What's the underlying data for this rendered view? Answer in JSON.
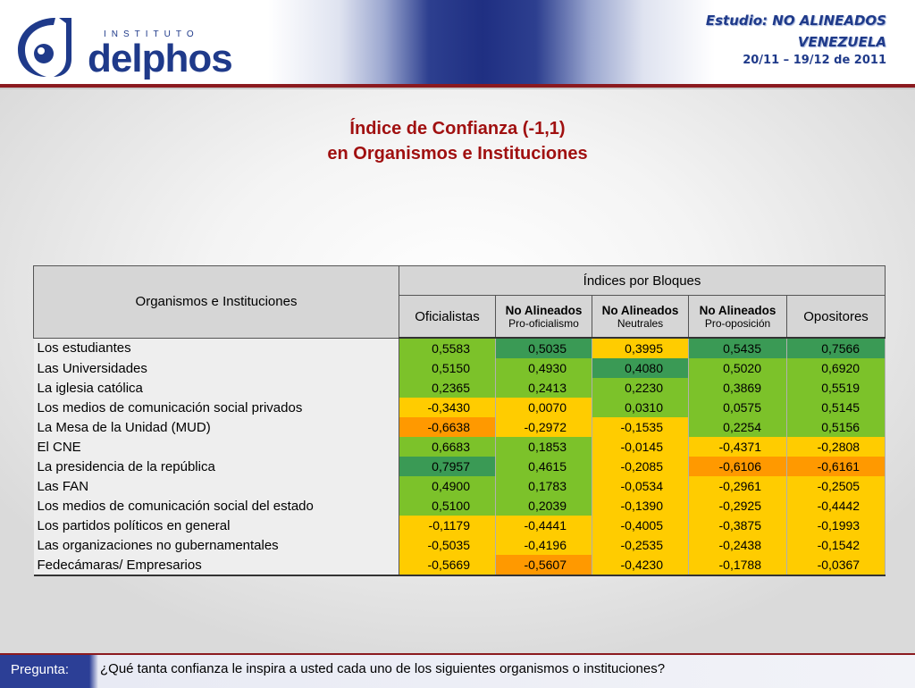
{
  "header": {
    "logo_institute": "INSTITUTO",
    "logo_word": "delphos",
    "study_label": "Estudio:",
    "study_name": "NO ALINEADOS",
    "country": "VENEZUELA",
    "date_range": "20/11 – 19/12 de 2011"
  },
  "title": {
    "line1": "Índice de Confianza (-1,1)",
    "line2": "en Organismos e Instituciones"
  },
  "table": {
    "org_header": "Organismos e Instituciones",
    "group_header": "Índices por Bloques",
    "columns": [
      {
        "bold": "",
        "sub": "",
        "plain": "Oficialistas"
      },
      {
        "bold": "No Alineados",
        "sub": "Pro-oficialismo",
        "plain": ""
      },
      {
        "bold": "No Alineados",
        "sub": "Neutrales",
        "plain": ""
      },
      {
        "bold": "No Alineados",
        "sub": "Pro-oposición",
        "plain": ""
      },
      {
        "bold": "",
        "sub": "",
        "plain": "Opositores"
      }
    ],
    "colors": {
      "dark_green": "#3a9a55",
      "light_green": "#7cc22a",
      "yellow": "#ffcc00",
      "orange": "#ff9900"
    },
    "rows": [
      {
        "name": "Los estudiantes",
        "values": [
          "0,5583",
          "0,5035",
          "0,3995",
          "0,5435",
          "0,7566"
        ],
        "tones": [
          "lg",
          "dg",
          "y",
          "dg",
          "dg"
        ]
      },
      {
        "name": "Las Universidades",
        "values": [
          "0,5150",
          "0,4930",
          "0,4080",
          "0,5020",
          "0,6920"
        ],
        "tones": [
          "lg",
          "lg",
          "dg",
          "lg",
          "lg"
        ]
      },
      {
        "name": "La iglesia católica",
        "values": [
          "0,2365",
          "0,2413",
          "0,2230",
          "0,3869",
          "0,5519"
        ],
        "tones": [
          "lg",
          "lg",
          "lg",
          "lg",
          "lg"
        ]
      },
      {
        "name": "Los medios de comunicación social privados",
        "values": [
          "-0,3430",
          "0,0070",
          "0,0310",
          "0,0575",
          "0,5145"
        ],
        "tones": [
          "y",
          "y",
          "lg",
          "lg",
          "lg"
        ]
      },
      {
        "name": "La Mesa de la Unidad (MUD)",
        "values": [
          "-0,6638",
          "-0,2972",
          "-0,1535",
          "0,2254",
          "0,5156"
        ],
        "tones": [
          "o",
          "y",
          "y",
          "lg",
          "lg"
        ]
      },
      {
        "name": "El CNE",
        "values": [
          "0,6683",
          "0,1853",
          "-0,0145",
          "-0,4371",
          "-0,2808"
        ],
        "tones": [
          "lg",
          "lg",
          "y",
          "y",
          "y"
        ]
      },
      {
        "name": "La presidencia de la república",
        "values": [
          "0,7957",
          "0,4615",
          "-0,2085",
          "-0,6106",
          "-0,6161"
        ],
        "tones": [
          "dg",
          "lg",
          "y",
          "o",
          "o"
        ]
      },
      {
        "name": "Las FAN",
        "values": [
          "0,4900",
          "0,1783",
          "-0,0534",
          "-0,2961",
          "-0,2505"
        ],
        "tones": [
          "lg",
          "lg",
          "y",
          "y",
          "y"
        ]
      },
      {
        "name": "Los medios de comunicación social del estado",
        "values": [
          "0,5100",
          "0,2039",
          "-0,1390",
          "-0,2925",
          "-0,4442"
        ],
        "tones": [
          "lg",
          "lg",
          "y",
          "y",
          "y"
        ]
      },
      {
        "name": "Los partidos políticos en general",
        "values": [
          "-0,1179",
          "-0,4441",
          "-0,4005",
          "-0,3875",
          "-0,1993"
        ],
        "tones": [
          "y",
          "y",
          "y",
          "y",
          "y"
        ]
      },
      {
        "name": "Las organizaciones no gubernamentales",
        "values": [
          "-0,5035",
          "-0,4196",
          "-0,2535",
          "-0,2438",
          "-0,1542"
        ],
        "tones": [
          "y",
          "y",
          "y",
          "y",
          "y"
        ]
      },
      {
        "name": "Fedecámaras/ Empresarios",
        "values": [
          "-0,5669",
          "-0,5607",
          "-0,4230",
          "-0,1788",
          "-0,0367"
        ],
        "tones": [
          "y",
          "o",
          "y",
          "y",
          "y"
        ]
      }
    ]
  },
  "footer": {
    "label": "Pregunta:",
    "question": "¿Qué tanta confianza le inspira a usted cada uno de los siguientes organismos o instituciones?"
  }
}
